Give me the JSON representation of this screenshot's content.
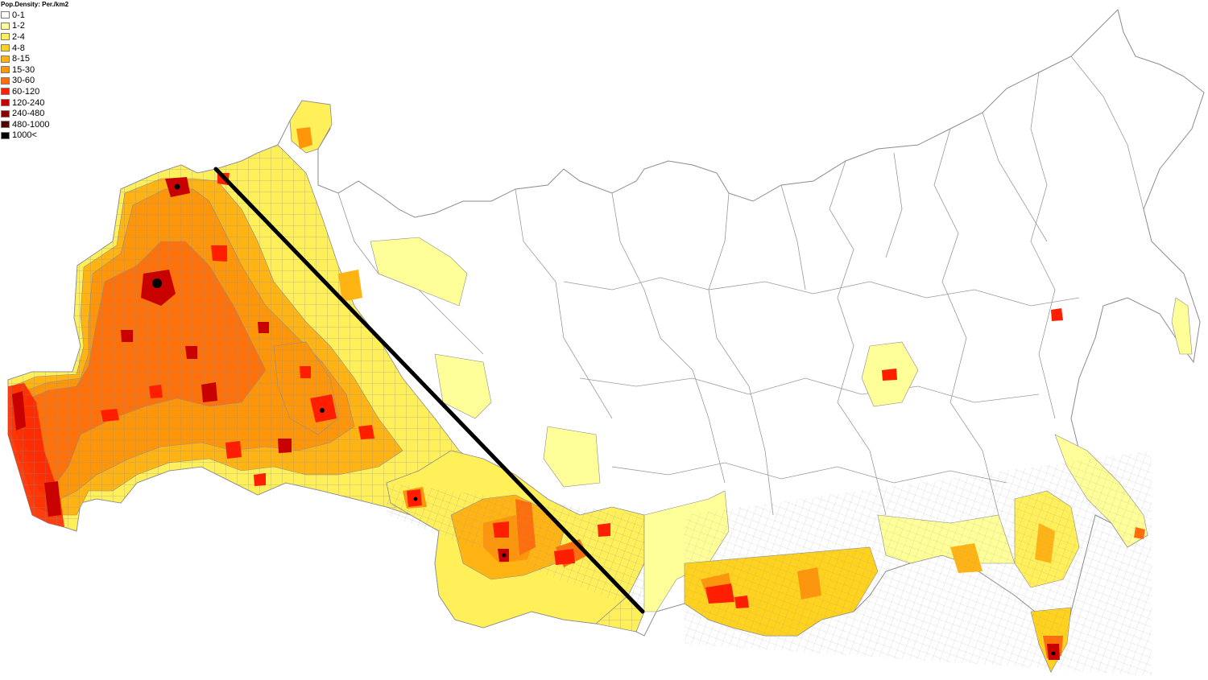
{
  "legend": {
    "title": "Pop.Density: Per./km2",
    "items": [
      {
        "label": "0-1",
        "color": "#ffffff"
      },
      {
        "label": "1-2",
        "color": "#ffff99"
      },
      {
        "label": "2-4",
        "color": "#fff05a"
      },
      {
        "label": "4-8",
        "color": "#ffd21e"
      },
      {
        "label": "8-15",
        "color": "#ffb414"
      },
      {
        "label": "15-30",
        "color": "#ff960a"
      },
      {
        "label": "30-60",
        "color": "#ff6e0a"
      },
      {
        "label": "60-120",
        "color": "#ff1e00"
      },
      {
        "label": "120-240",
        "color": "#c80000"
      },
      {
        "label": "240-480",
        "color": "#8c0000"
      },
      {
        "label": "480-1000",
        "color": "#500000"
      },
      {
        "label": "1000<",
        "color": "#000000"
      }
    ]
  },
  "map": {
    "boundary_color": "#8c8c8c",
    "divider_line_color": "#000000"
  }
}
